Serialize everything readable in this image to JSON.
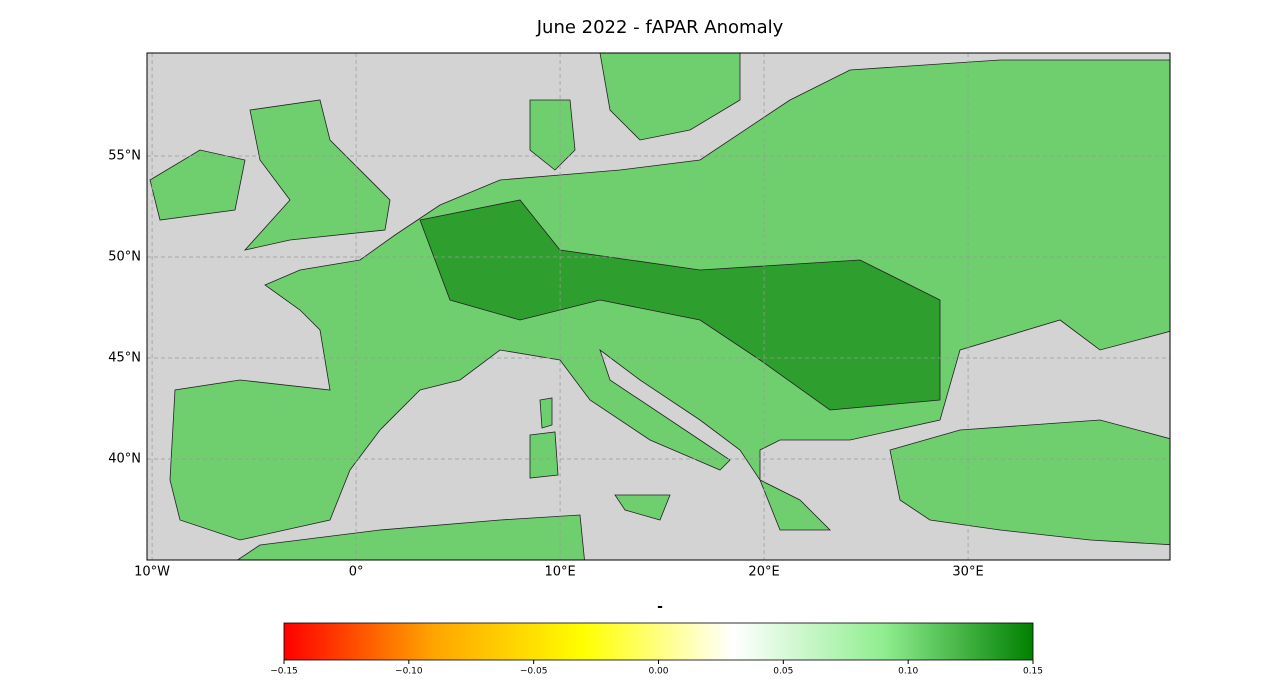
{
  "map": {
    "title": "June 2022  - fAPAR Anomaly",
    "xlim": [
      -10.25,
      39.9
    ],
    "ylim": [
      35,
      60.1
    ],
    "xticks": [
      {
        "value": -10,
        "label": "10°W"
      },
      {
        "value": 0,
        "label": "0°"
      },
      {
        "value": 10,
        "label": "10°E"
      },
      {
        "value": 20,
        "label": "20°E"
      },
      {
        "value": 30,
        "label": "30°E"
      }
    ],
    "yticks": [
      {
        "value": 40,
        "label": "40°N"
      },
      {
        "value": 45,
        "label": "45°N"
      },
      {
        "value": 50,
        "label": "50°N"
      },
      {
        "value": 55,
        "label": "55°N"
      }
    ],
    "grid": true
  },
  "colorbar": {
    "label": "-",
    "lim": [
      -0.15,
      0.15
    ],
    "colors": [
      "#ff0000",
      "#ffa500",
      "#ffff00",
      "#ffffff",
      "#90ee90",
      "#008000"
    ],
    "ticks": [
      {
        "value": -0.15,
        "label": "−0.15"
      },
      {
        "value": -0.1,
        "label": "−0.10"
      },
      {
        "value": -0.05,
        "label": "−0.05"
      },
      {
        "value": 0,
        "label": "0.00"
      },
      0.05,
      {
        "value": 0.1,
        "label": "0.10"
      },
      0.15
    ]
  }
}
